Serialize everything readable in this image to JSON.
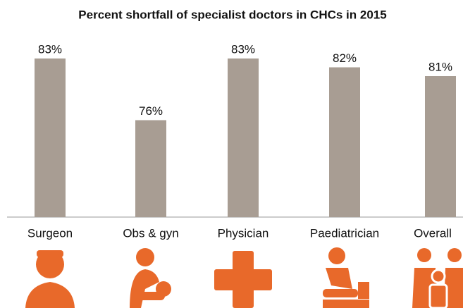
{
  "chart_data": {
    "type": "bar",
    "title": "Percent shortfall of specialist doctors in CHCs in 2015",
    "categories": [
      "Surgeon",
      "Obs & gyn",
      "Physician",
      "Paediatrician",
      "Overall"
    ],
    "values": [
      83,
      76,
      83,
      82,
      81
    ],
    "value_labels": [
      "83%",
      "76%",
      "83%",
      "82%",
      "81%"
    ],
    "color": "#a89d93",
    "ylim": [
      65,
      83
    ]
  }
}
